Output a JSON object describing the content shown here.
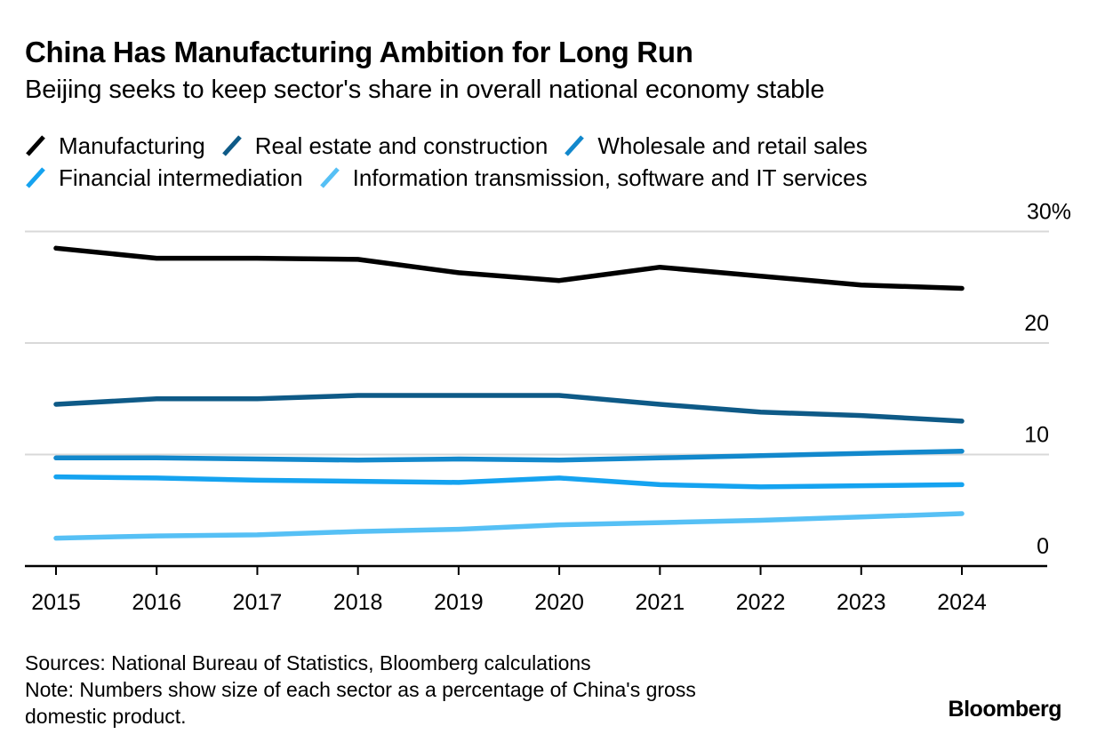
{
  "header": {
    "title": "China Has Manufacturing Ambition for Long Run",
    "subtitle": "Beijing seeks to keep sector's share in overall national economy stable"
  },
  "legend": {
    "rows": [
      [
        0,
        1,
        2
      ],
      [
        3,
        4
      ]
    ]
  },
  "footer": {
    "sources": "Sources: National Bureau of Statistics, Bloomberg calculations",
    "note": "Note: Numbers show size of each sector as a percentage of China's gross domestic product.",
    "note_line1": "Note: Numbers show size of each sector as a percentage of China's gross",
    "note_line2": "domestic product.",
    "brand": "Bloomberg"
  },
  "chart_data": {
    "type": "line",
    "title": "China Has Manufacturing Ambition for Long Run",
    "subtitle": "Beijing seeks to keep sector's share in overall national economy stable",
    "xlabel": "",
    "ylabel": "",
    "x": [
      "2015",
      "2016",
      "2017",
      "2018",
      "2019",
      "2020",
      "2021",
      "2022",
      "2023",
      "2024"
    ],
    "ylim": [
      0,
      30
    ],
    "yticks": [
      0,
      10,
      20,
      30
    ],
    "ytick_labels": [
      "0",
      "10",
      "20",
      "30%"
    ],
    "y_axis_side": "right",
    "grid": true,
    "legend_position": "top",
    "series": [
      {
        "name": "Manufacturing",
        "color": "#000000",
        "values": [
          28.5,
          27.6,
          27.6,
          27.5,
          26.3,
          25.6,
          26.8,
          26.0,
          25.2,
          24.9
        ]
      },
      {
        "name": "Real estate and construction",
        "color": "#0e5a87",
        "values": [
          14.5,
          15.0,
          15.0,
          15.3,
          15.3,
          15.3,
          14.5,
          13.8,
          13.5,
          13.0
        ]
      },
      {
        "name": "Wholesale and retail sales",
        "color": "#1288cc",
        "values": [
          9.7,
          9.7,
          9.6,
          9.5,
          9.6,
          9.5,
          9.7,
          9.9,
          10.1,
          10.3
        ]
      },
      {
        "name": "Financial intermediation",
        "color": "#15a3f0",
        "values": [
          8.0,
          7.9,
          7.7,
          7.6,
          7.5,
          7.9,
          7.3,
          7.1,
          7.2,
          7.3
        ]
      },
      {
        "name": "Information transmission, software and IT services",
        "color": "#56c0f5",
        "values": [
          2.5,
          2.7,
          2.8,
          3.1,
          3.3,
          3.7,
          3.9,
          4.1,
          4.4,
          4.7
        ]
      }
    ]
  }
}
